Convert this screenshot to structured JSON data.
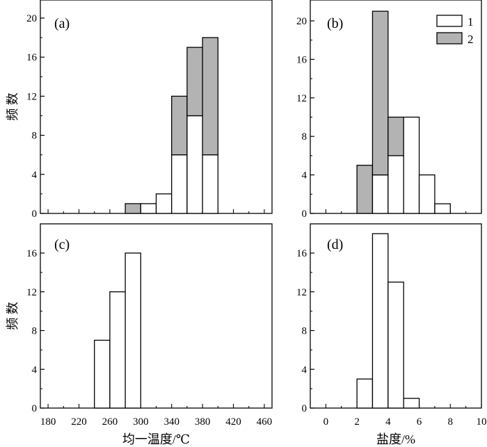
{
  "chart_data": [
    {
      "panel": "(a)",
      "type": "bar",
      "subtype": "stacked-histogram",
      "bin_starts": [
        280,
        300,
        320,
        340,
        360,
        380
      ],
      "bin_width": 20,
      "series": [
        {
          "name": "1",
          "values": [
            0,
            1,
            2,
            6,
            10,
            6
          ],
          "color": "#ffffff"
        },
        {
          "name": "2",
          "values": [
            1,
            0,
            0,
            6,
            7,
            12
          ],
          "color": "#b3b3b3"
        }
      ],
      "xlim": [
        170,
        470
      ],
      "ylim": [
        0,
        22
      ],
      "yticks": [
        0,
        4,
        8,
        12,
        16,
        20
      ],
      "ylabel": "频 数",
      "xlabel": ""
    },
    {
      "panel": "(b)",
      "type": "bar",
      "subtype": "stacked-histogram",
      "bin_starts": [
        2,
        3,
        4,
        5,
        6,
        7
      ],
      "bin_width": 1,
      "series": [
        {
          "name": "1",
          "values": [
            0,
            4,
            6,
            10,
            4,
            1
          ],
          "color": "#ffffff"
        },
        {
          "name": "2",
          "values": [
            5,
            17,
            4,
            0,
            0,
            0
          ],
          "color": "#b3b3b3"
        }
      ],
      "xlim": [
        -1,
        10
      ],
      "ylim": [
        0,
        21.5
      ],
      "yticks": [
        0,
        4,
        8,
        12,
        16,
        20
      ],
      "ylabel": "",
      "xlabel": "",
      "legend_position": "top-right"
    },
    {
      "panel": "(c)",
      "type": "bar",
      "subtype": "histogram",
      "bin_starts": [
        240,
        260,
        280
      ],
      "bin_width": 20,
      "series": [
        {
          "name": "",
          "values": [
            7,
            12,
            16
          ],
          "color": "#ffffff"
        }
      ],
      "xlim": [
        170,
        470
      ],
      "ylim": [
        0,
        18.5
      ],
      "yticks": [
        0,
        4,
        8,
        12,
        16
      ],
      "xticks": [
        180,
        220,
        260,
        300,
        340,
        380,
        420,
        460
      ],
      "ylabel": "频 数",
      "xlabel": "均一温度/℃"
    },
    {
      "panel": "(d)",
      "type": "bar",
      "subtype": "histogram",
      "bin_starts": [
        2,
        3,
        4,
        5
      ],
      "bin_width": 1,
      "series": [
        {
          "name": "",
          "values": [
            3,
            18,
            13,
            1
          ],
          "color": "#ffffff"
        }
      ],
      "xlim": [
        -1,
        10
      ],
      "ylim": [
        0,
        18.5
      ],
      "yticks": [
        0,
        4,
        8,
        12,
        16
      ],
      "xticks": [
        0,
        2,
        4,
        6,
        8,
        10
      ],
      "ylabel": "",
      "xlabel": "盐度/%"
    }
  ],
  "legend": {
    "entries": [
      {
        "label": "1",
        "color": "#ffffff"
      },
      {
        "label": "2",
        "color": "#b3b3b3"
      }
    ]
  }
}
